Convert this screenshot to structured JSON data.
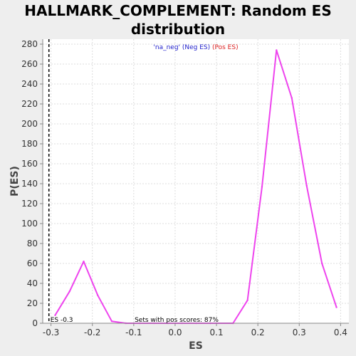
{
  "chart_data": {
    "type": "line",
    "title_line1": "HALLMARK_COMPLEMENT: Random ES",
    "title_line2": "distribution",
    "xlabel": "ES",
    "ylabel": "P(ES)",
    "xlim": [
      -0.32,
      0.42
    ],
    "ylim": [
      0,
      285
    ],
    "xticks": [
      -0.3,
      -0.2,
      -0.1,
      0.0,
      0.1,
      0.2,
      0.3,
      0.4
    ],
    "xtick_labels": [
      "-0.3",
      "-0.2",
      "-0.1",
      "0.0",
      "0.1",
      "0.2",
      "0.3",
      "0.4"
    ],
    "yticks": [
      0,
      20,
      40,
      60,
      80,
      100,
      120,
      140,
      160,
      180,
      200,
      220,
      240,
      260,
      280
    ],
    "grid": true,
    "series": [
      {
        "color": "#ee44ee",
        "x": [
          -0.29,
          -0.255,
          -0.221,
          -0.187,
          -0.153,
          -0.119,
          -0.085,
          -0.051,
          -0.017,
          0.017,
          0.051,
          0.085,
          0.14,
          0.175,
          0.21,
          0.245,
          0.282,
          0.318,
          0.355,
          0.39
        ],
        "y": [
          8,
          32,
          62,
          28,
          2,
          0,
          0,
          0,
          0,
          0,
          0,
          0,
          0,
          23,
          137,
          274,
          226,
          138,
          60,
          16
        ]
      }
    ],
    "es_marker": {
      "x": -0.305,
      "label": "ES -0.3",
      "color": "#000000"
    },
    "legend": {
      "placement": "top-center",
      "part1": "'na_neg' (Neg ES)",
      "part1_color": "#2222cc",
      "part2": " (Pos ES)",
      "part2_color": "#dd2222"
    },
    "annotation": "Sets with pos scores: 87%"
  }
}
